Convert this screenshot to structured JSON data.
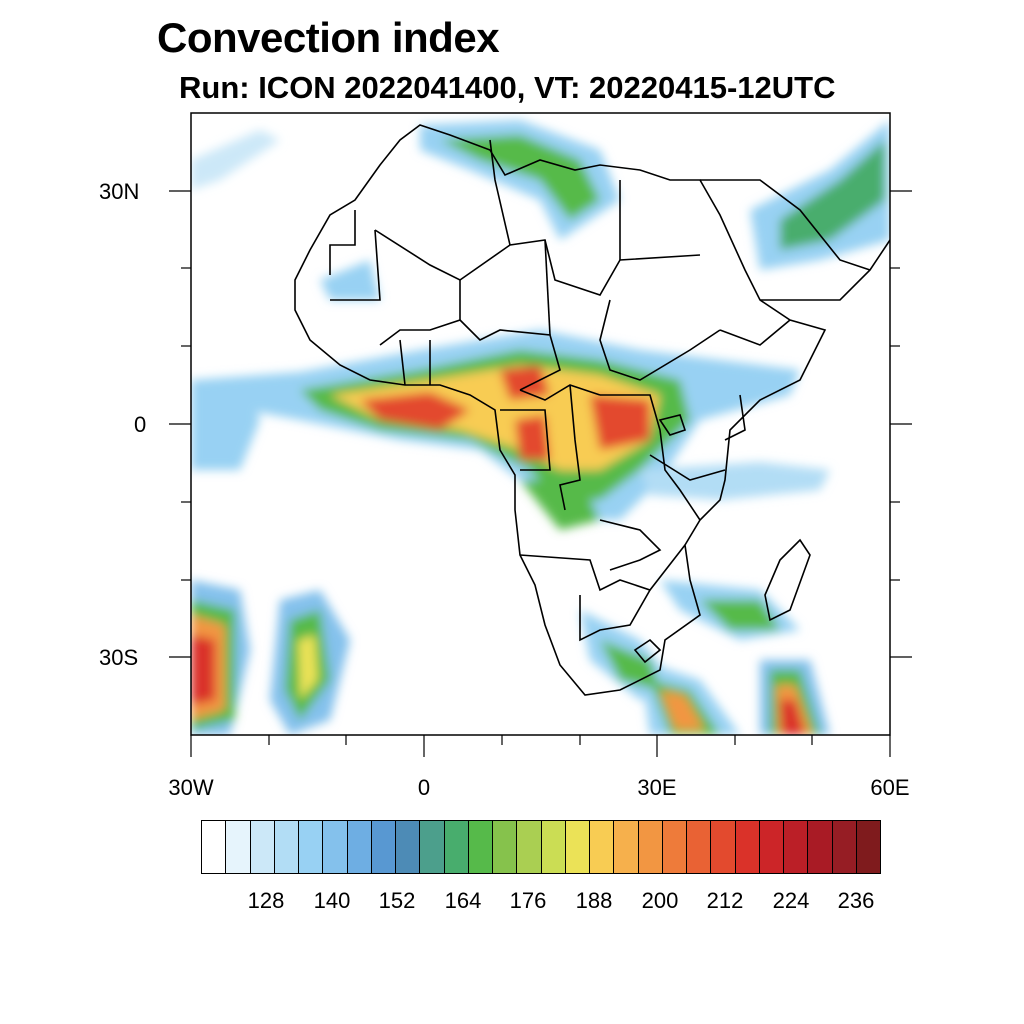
{
  "title": "Convection index",
  "subtitle": "Run: ICON 2022041400,  VT: 20220415-12UTC",
  "map": {
    "type": "filled-contour-map",
    "projection": "cylindrical equidistant",
    "lat_range": [
      -40,
      40
    ],
    "lon_range": [
      -30,
      60
    ],
    "lat_labels": [
      {
        "label": "30N",
        "value": 30
      },
      {
        "label": "0",
        "value": 0
      },
      {
        "label": "30S",
        "value": -30
      }
    ],
    "lon_labels": [
      {
        "label": "30W",
        "value": -30
      },
      {
        "label": "0",
        "value": 0
      },
      {
        "label": "30E",
        "value": 30
      },
      {
        "label": "60E",
        "value": 60
      }
    ]
  },
  "colorbar": {
    "colors": [
      "#ffffff",
      "#e6f4fc",
      "#cce8f8",
      "#b2ddf5",
      "#98d1f3",
      "#84c1ec",
      "#6eaee3",
      "#5898d2",
      "#4d8bb6",
      "#4c9f8c",
      "#48ad6d",
      "#56ba4a",
      "#86c24c",
      "#aacf52",
      "#cbdd54",
      "#ebe257",
      "#f8cc53",
      "#f6b04c",
      "#f29642",
      "#ee7b3a",
      "#e96234",
      "#e34a2e",
      "#da3229",
      "#cc2528",
      "#bb1f27",
      "#a91b25",
      "#961d24",
      "#7f1b1d"
    ],
    "tick_labels": [
      "128",
      "140",
      "152",
      "164",
      "176",
      "188",
      "200",
      "212",
      "224",
      "236"
    ]
  }
}
